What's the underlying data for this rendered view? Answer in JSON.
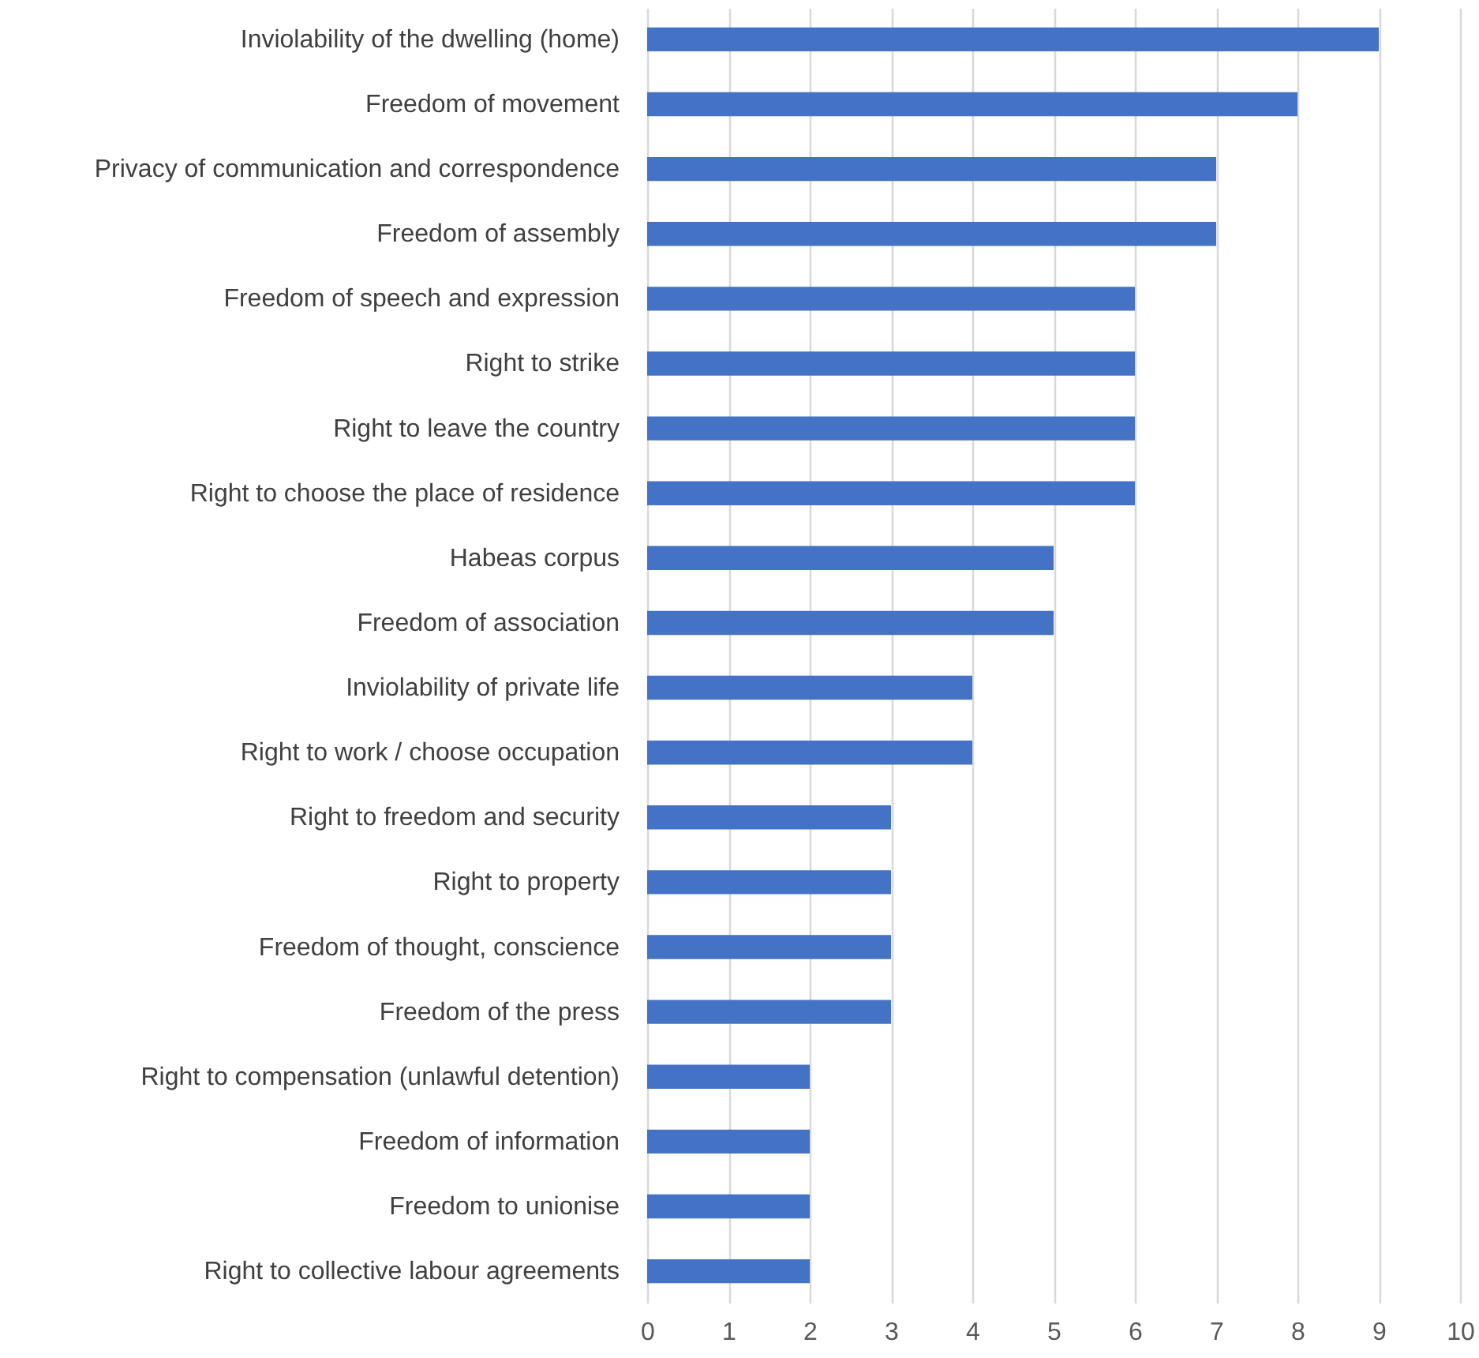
{
  "chart_data": {
    "type": "bar",
    "orientation": "horizontal",
    "categories": [
      "Inviolability of the dwelling (home)",
      "Freedom of movement",
      "Privacy of communication and correspondence",
      "Freedom of assembly",
      "Freedom of speech and expression",
      "Right to strike",
      "Right to leave the country",
      "Right to choose the place of residence",
      "Habeas corpus",
      "Freedom of association",
      "Inviolability of private life",
      "Right to work / choose occupation",
      "Right to freedom and security",
      "Right to property",
      "Freedom of thought, conscience",
      "Freedom of the press",
      "Right to compensation (unlawful detention)",
      "Freedom of information",
      "Freedom to unionise",
      "Right to collective labour agreements"
    ],
    "values": [
      9,
      8,
      7,
      7,
      6,
      6,
      6,
      6,
      5,
      5,
      4,
      4,
      3,
      3,
      3,
      3,
      2,
      2,
      2,
      2
    ],
    "color": "#4472c4",
    "xlim": [
      0,
      10
    ],
    "xticks": [
      0,
      1,
      2,
      3,
      4,
      5,
      6,
      7,
      8,
      9,
      10
    ],
    "grid": "x"
  }
}
